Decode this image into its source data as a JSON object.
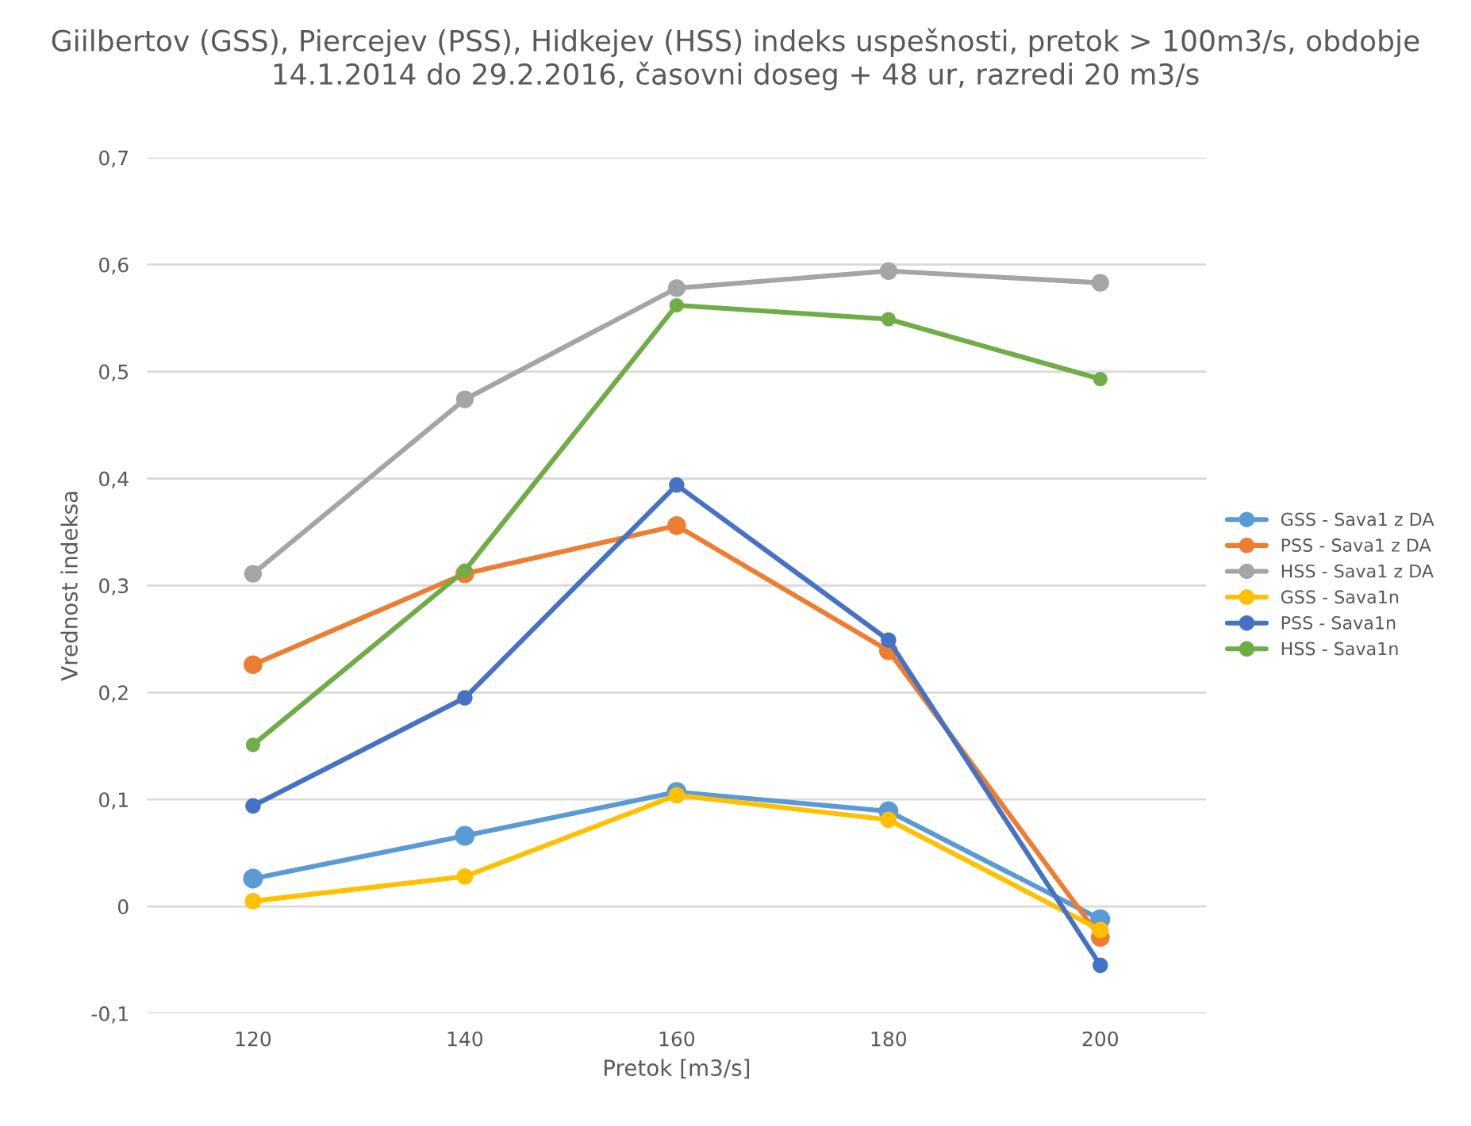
{
  "chart_data": {
    "type": "line",
    "title": "Giilbertov (GSS), Piercejev (PSS), Hidkejev (HSS) indeks uspešnosti, pretok > 100m3/s, obdobje 14.1.2014 do 29.2.2016, časovni doseg + 48 ur, razredi 20 m3/s",
    "xlabel": "Pretok [m3/s]",
    "ylabel": "Vrednost indeksa",
    "categories": [
      "120",
      "140",
      "160",
      "180",
      "200"
    ],
    "series": [
      {
        "name": "GSS - Sava1 z DA",
        "color": "#5b9bd5",
        "values": [
          0.026,
          0.066,
          0.107,
          0.089,
          -0.012
        ]
      },
      {
        "name": "PSS - Sava1 z DA",
        "color": "#ed7d31",
        "values": [
          0.226,
          0.311,
          0.356,
          0.239,
          -0.029
        ]
      },
      {
        "name": "HSS - Sava1 z DA",
        "color": "#a5a5a5",
        "values": [
          0.311,
          0.474,
          0.578,
          0.594,
          0.583
        ]
      },
      {
        "name": "GSS - Sava1n",
        "color": "#ffc000",
        "values": [
          0.005,
          0.028,
          0.104,
          0.081,
          -0.022
        ]
      },
      {
        "name": "PSS - Sava1n",
        "color": "#4472c4",
        "values": [
          0.094,
          0.195,
          0.394,
          0.249,
          -0.055
        ]
      },
      {
        "name": "HSS - Sava1n",
        "color": "#70ad47",
        "values": [
          0.151,
          0.314,
          0.562,
          0.549,
          0.493
        ]
      }
    ],
    "ylim": [
      -0.1,
      0.7
    ],
    "yticks": [
      {
        "value": -0.1,
        "label": "-0,1"
      },
      0,
      {
        "value": 0.1,
        "label": "0,1"
      },
      {
        "value": 0.2,
        "label": "0,2"
      },
      {
        "value": 0.3,
        "label": "0,3"
      },
      {
        "value": 0.4,
        "label": "0,4"
      },
      {
        "value": 0.5,
        "label": "0,5"
      },
      {
        "value": 0.6,
        "label": "0,6"
      },
      {
        "value": 0.7,
        "label": "0,7"
      }
    ],
    "grid": "y",
    "legend": "right",
    "marker": "circle",
    "line_style": "solid"
  }
}
